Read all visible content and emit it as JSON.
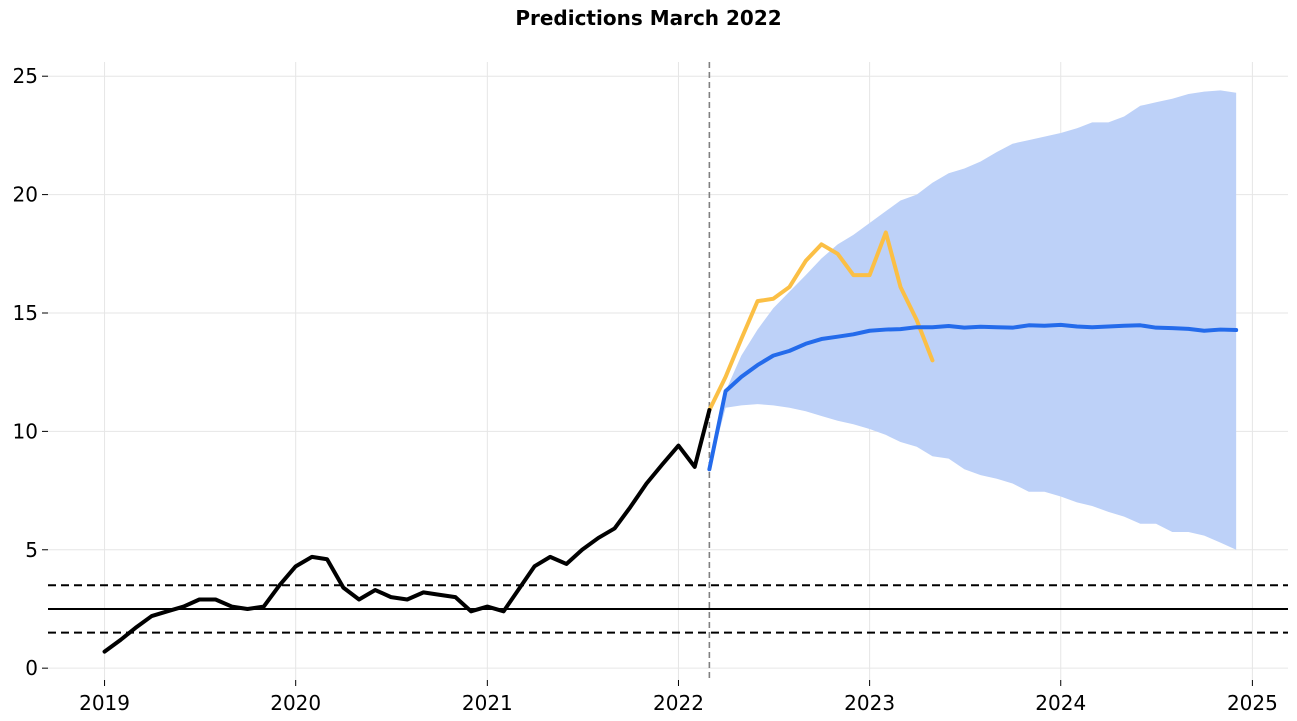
{
  "chart_data": {
    "type": "line",
    "title": "Predictions March 2022",
    "xlabel": "",
    "ylabel": "",
    "xlim": [
      "2018-09-15",
      "2025-03-10"
    ],
    "ylim": [
      -0.5,
      25.6
    ],
    "grid": true,
    "x_ticks": [
      "2019",
      "2020",
      "2021",
      "2022",
      "2023",
      "2024",
      "2025"
    ],
    "y_ticks": [
      "0",
      "5",
      "10",
      "15",
      "20",
      "25"
    ],
    "reference_lines": [
      {
        "y": 2.5,
        "style": "solid",
        "color": "#000000"
      },
      {
        "y": 3.5,
        "style": "dashed",
        "color": "#000000"
      },
      {
        "y": 1.5,
        "style": "dashed",
        "color": "#000000"
      }
    ],
    "vertical_line": {
      "x": "2022-03-01",
      "style": "dashed",
      "color": "#808080"
    },
    "colors": {
      "history": "#000000",
      "forecast": "#246BEB",
      "band": "#BDD1F8",
      "actual": "#FBBF45"
    },
    "series": [
      {
        "role": "history",
        "x": [
          "2019-01",
          "2019-02",
          "2019-03",
          "2019-04",
          "2019-05",
          "2019-06",
          "2019-07",
          "2019-08",
          "2019-09",
          "2019-10",
          "2019-11",
          "2019-12",
          "2020-01",
          "2020-02",
          "2020-03",
          "2020-04",
          "2020-05",
          "2020-06",
          "2020-07",
          "2020-08",
          "2020-09",
          "2020-10",
          "2020-11",
          "2020-12",
          "2021-01",
          "2021-02",
          "2021-03",
          "2021-04",
          "2021-05",
          "2021-06",
          "2021-07",
          "2021-08",
          "2021-09",
          "2021-10",
          "2021-11",
          "2021-12",
          "2022-01",
          "2022-02",
          "2022-03"
        ],
        "values": [
          0.7,
          1.2,
          1.7,
          2.2,
          2.4,
          2.6,
          2.9,
          2.9,
          2.6,
          2.5,
          2.6,
          3.5,
          4.3,
          4.7,
          4.6,
          3.4,
          2.9,
          3.3,
          3.0,
          2.9,
          3.2,
          3.1,
          3.0,
          2.4,
          2.6,
          2.4,
          3.3,
          4.3,
          4.7,
          4.4,
          5.0,
          5.5,
          5.9,
          6.8,
          7.8,
          8.6,
          9.4,
          8.5,
          10.9
        ]
      },
      {
        "role": "forecast",
        "x": [
          "2022-03",
          "2022-04",
          "2022-05",
          "2022-06",
          "2022-07",
          "2022-08",
          "2022-09",
          "2022-10",
          "2022-11",
          "2022-12",
          "2023-01",
          "2023-02",
          "2023-03",
          "2023-04",
          "2023-05",
          "2023-06",
          "2023-07",
          "2023-08",
          "2023-09",
          "2023-10",
          "2023-11",
          "2023-12",
          "2024-01",
          "2024-02",
          "2024-03",
          "2024-04",
          "2024-05",
          "2024-06",
          "2024-07",
          "2024-08",
          "2024-09",
          "2024-10",
          "2024-11",
          "2024-12"
        ],
        "values": [
          8.4,
          11.7,
          12.3,
          12.8,
          13.2,
          13.4,
          13.7,
          13.9,
          14.0,
          14.1,
          14.25,
          14.3,
          14.32,
          14.4,
          14.4,
          14.45,
          14.38,
          14.42,
          14.4,
          14.38,
          14.48,
          14.46,
          14.5,
          14.43,
          14.4,
          14.43,
          14.46,
          14.48,
          14.38,
          14.36,
          14.33,
          14.25,
          14.3,
          14.28
        ],
        "lower": [
          8.4,
          11.0,
          11.1,
          11.15,
          11.1,
          11.0,
          10.85,
          10.65,
          10.45,
          10.3,
          10.1,
          9.85,
          9.55,
          9.35,
          8.95,
          8.85,
          8.4,
          8.15,
          8.0,
          7.8,
          7.45,
          7.45,
          7.25,
          7.0,
          6.85,
          6.6,
          6.4,
          6.1,
          6.1,
          5.75,
          5.75,
          5.6,
          5.3,
          5.0
        ],
        "upper": [
          8.4,
          11.7,
          13.2,
          14.3,
          15.2,
          15.9,
          16.6,
          17.3,
          17.9,
          18.3,
          18.8,
          19.3,
          19.75,
          20.0,
          20.5,
          20.9,
          21.1,
          21.4,
          21.8,
          22.15,
          22.3,
          22.45,
          22.6,
          22.8,
          23.05,
          23.05,
          23.3,
          23.75,
          23.9,
          24.05,
          24.25,
          24.35,
          24.4,
          24.3
        ]
      },
      {
        "role": "actual",
        "x": [
          "2022-03",
          "2022-04",
          "2022-05",
          "2022-06",
          "2022-07",
          "2022-08",
          "2022-09",
          "2022-10",
          "2022-11",
          "2022-12",
          "2023-01",
          "2023-02",
          "2023-03",
          "2023-04",
          "2023-05"
        ],
        "values": [
          10.9,
          12.3,
          13.9,
          15.5,
          15.6,
          16.1,
          17.2,
          17.9,
          17.5,
          16.6,
          16.6,
          18.4,
          16.1,
          14.7,
          13.0
        ]
      }
    ]
  }
}
